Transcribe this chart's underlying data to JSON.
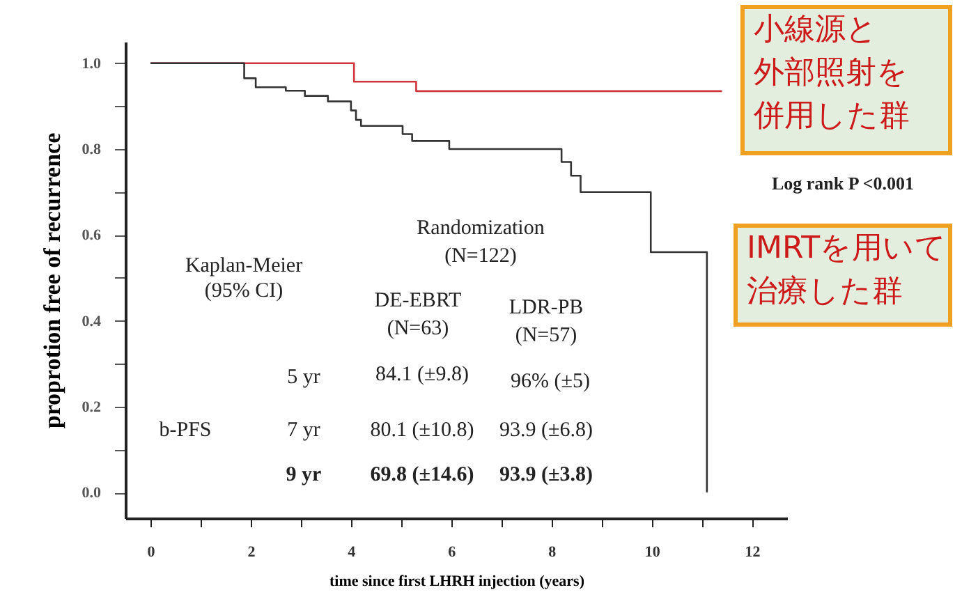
{
  "chart_data": {
    "type": "step",
    "xlabel": "time since first LHRH injection (years)",
    "ylabel": "proprotion free of recurrence",
    "xlim": [
      -0.5,
      12.7
    ],
    "ylim": [
      -0.06,
      1.05
    ],
    "xticks": [
      0,
      {
        "value": 1,
        "label": null
      },
      2,
      {
        "value": 3,
        "label": null
      },
      4,
      {
        "value": 5,
        "label": null
      },
      6,
      {
        "value": 7,
        "label": null
      },
      8,
      {
        "value": 9,
        "label": null
      },
      10,
      {
        "value": 11,
        "label": null
      },
      12
    ],
    "yticks": [
      {
        "value": 0,
        "label": "0.0"
      },
      {
        "value": 0.1,
        "label": null
      },
      {
        "value": 0.2,
        "label": "0.2"
      },
      {
        "value": 0.3,
        "label": null
      },
      {
        "value": 0.4,
        "label": "0.4"
      },
      {
        "value": 0.5,
        "label": null
      },
      {
        "value": 0.6,
        "label": "0.6"
      },
      {
        "value": 0.7,
        "label": null
      },
      {
        "value": 0.8,
        "label": "0.8"
      },
      {
        "value": 0.9,
        "label": null
      },
      {
        "value": 1,
        "label": "1.0"
      }
    ],
    "grid": false,
    "legend": false,
    "series": [
      {
        "name": "小線源と外部照射を併用した群",
        "color": "#d0343c",
        "x": [
          0,
          4.06,
          5.3,
          11.4
        ],
        "values": [
          1,
          0.957,
          0.935,
          0.935
        ]
      },
      {
        "name": "IMRTを用いて治療した群",
        "color": "#333333",
        "x": [
          0,
          1.87,
          2.1,
          2.7,
          3.08,
          3.54,
          4.0,
          4.1,
          4.2,
          5.03,
          5.22,
          5.96,
          8.2,
          8.39,
          8.58,
          9.98,
          11.1
        ],
        "values": [
          1,
          0.965,
          0.944,
          0.936,
          0.924,
          0.911,
          0.89,
          0.868,
          0.854,
          0.835,
          0.819,
          0.8,
          0.77,
          0.738,
          0.7,
          0.56,
          0
        ]
      }
    ],
    "annotations": [
      "Kaplan-Meier",
      "(95% CI)",
      "Randomization",
      "(N=122)",
      "DE-EBRT",
      "(N=63)",
      "LDR-PB",
      "(N=57)",
      "b-PFS",
      "5 yr",
      "84.1 (±9.8)",
      "96% (±5)",
      "7 yr",
      "80.1 (±10.8)",
      "93.9 (±6.8)",
      "9 yr",
      "69.8 (±14.6)",
      "93.9 (±3.8)",
      "Log rank  P <0.001"
    ]
  }
}
